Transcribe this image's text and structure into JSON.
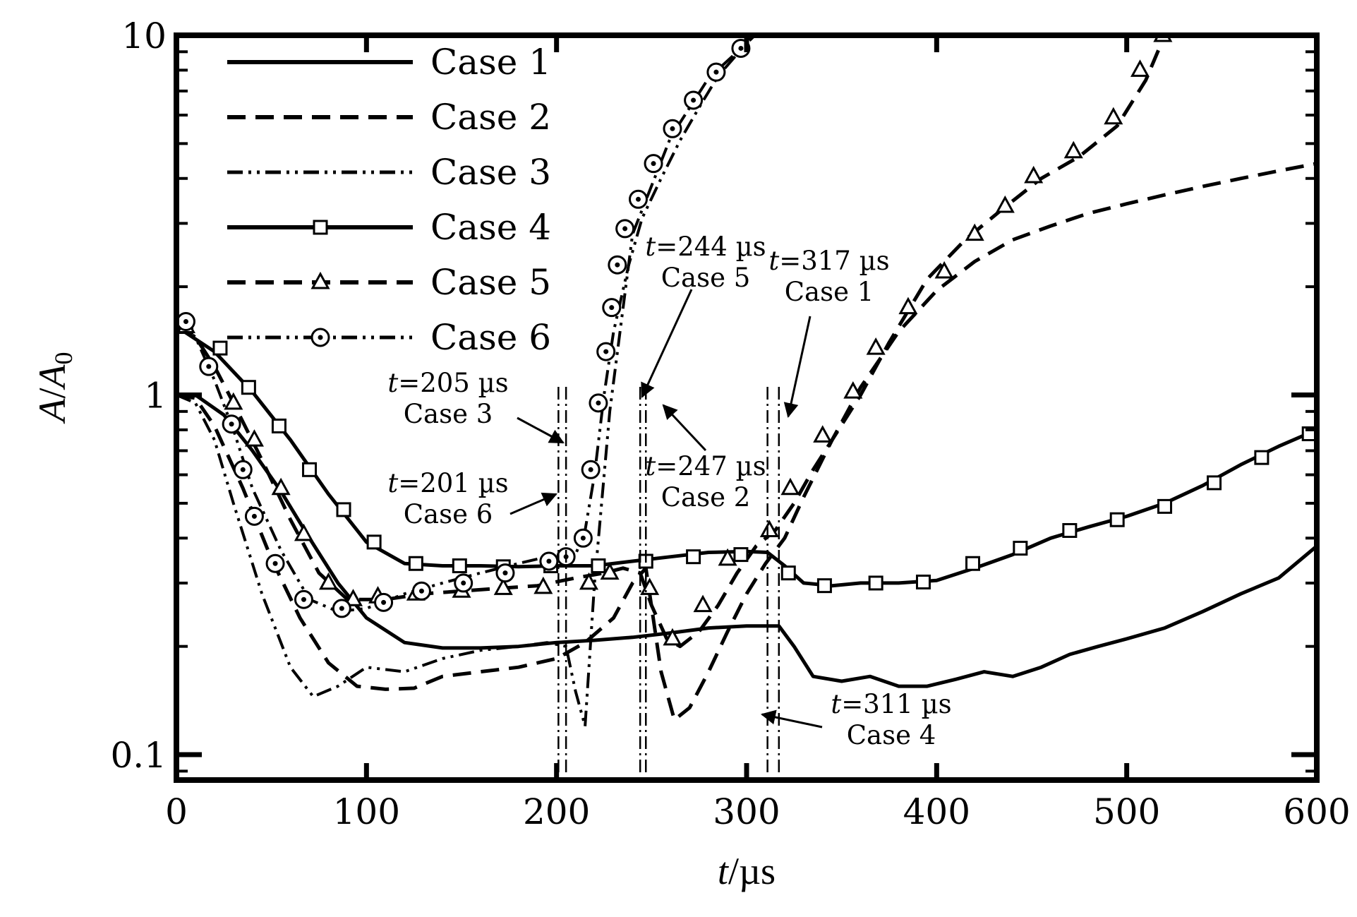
{
  "chart_data": {
    "type": "line",
    "xlabel": {
      "var": "t",
      "unit": "/µs"
    },
    "ylabel": {
      "var": "A",
      "divider": "/",
      "den": "A",
      "sub": "0"
    },
    "xlim": [
      0,
      600
    ],
    "ylim": [
      0.085,
      10
    ],
    "yscale": "log",
    "x_ticks": [
      0,
      100,
      200,
      300,
      400,
      500,
      600
    ],
    "y_ticks": [
      {
        "value": 0.1,
        "label": "0.1"
      },
      {
        "value": 1,
        "label": "1"
      },
      {
        "value": 10,
        "label": "10"
      }
    ],
    "grid": false,
    "legend_position": "top-left",
    "series": [
      {
        "name": "Case 1",
        "line": "solid",
        "marker": "none",
        "x": [
          0,
          10,
          25,
          40,
          55,
          70,
          85,
          100,
          120,
          140,
          160,
          180,
          200,
          220,
          240,
          260,
          280,
          300,
          317,
          325,
          335,
          350,
          365,
          380,
          395,
          410,
          425,
          440,
          455,
          470,
          485,
          500,
          520,
          540,
          560,
          580,
          600
        ],
        "y": [
          1.0,
          1.0,
          0.88,
          0.7,
          0.54,
          0.4,
          0.3,
          0.24,
          0.205,
          0.198,
          0.198,
          0.2,
          0.205,
          0.208,
          0.212,
          0.218,
          0.225,
          0.228,
          0.228,
          0.2,
          0.165,
          0.16,
          0.165,
          0.155,
          0.155,
          0.162,
          0.17,
          0.165,
          0.175,
          0.19,
          0.2,
          0.21,
          0.225,
          0.25,
          0.28,
          0.31,
          0.38
        ]
      },
      {
        "name": "Case 2",
        "line": "dashed",
        "marker": "none",
        "x": [
          0,
          10,
          20,
          35,
          50,
          65,
          80,
          95,
          110,
          125,
          140,
          160,
          180,
          200,
          215,
          230,
          240,
          247,
          255,
          262,
          270,
          280,
          290,
          300,
          310,
          320,
          330,
          345,
          360,
          380,
          400,
          420,
          440,
          460,
          480,
          500,
          520,
          540,
          560,
          580,
          600
        ],
        "y": [
          1.0,
          0.98,
          0.82,
          0.55,
          0.35,
          0.24,
          0.18,
          0.155,
          0.152,
          0.153,
          0.165,
          0.17,
          0.175,
          0.185,
          0.205,
          0.24,
          0.3,
          0.33,
          0.17,
          0.125,
          0.135,
          0.17,
          0.22,
          0.28,
          0.34,
          0.4,
          0.52,
          0.75,
          1.05,
          1.5,
          1.95,
          2.35,
          2.7,
          2.95,
          3.2,
          3.4,
          3.6,
          3.8,
          4.0,
          4.2,
          4.4
        ]
      },
      {
        "name": "Case 3",
        "line": "dash-dot-dot",
        "marker": "none",
        "x": [
          0,
          10,
          20,
          30,
          45,
          60,
          72,
          85,
          100,
          120,
          140,
          160,
          180,
          195,
          205,
          210,
          215,
          220,
          228,
          240,
          260,
          280,
          300,
          320
        ],
        "y": [
          1.0,
          0.95,
          0.75,
          0.5,
          0.28,
          0.175,
          0.145,
          0.155,
          0.175,
          0.17,
          0.185,
          0.195,
          0.2,
          0.205,
          0.2,
          0.15,
          0.12,
          0.3,
          0.9,
          2.8,
          5.2,
          7.6,
          9.5,
          12.0
        ]
      },
      {
        "name": "Case 4",
        "line": "solid",
        "marker": "square",
        "x": [
          0,
          20,
          40,
          60,
          80,
          100,
          120,
          140,
          160,
          180,
          200,
          220,
          240,
          260,
          280,
          300,
          311,
          320,
          330,
          345,
          360,
          380,
          400,
          420,
          440,
          460,
          480,
          500,
          520,
          540,
          560,
          580,
          600
        ],
        "y": [
          1.55,
          1.32,
          1.02,
          0.75,
          0.53,
          0.39,
          0.34,
          0.335,
          0.335,
          0.333,
          0.335,
          0.335,
          0.345,
          0.355,
          0.365,
          0.367,
          0.365,
          0.335,
          0.3,
          0.295,
          0.3,
          0.3,
          0.305,
          0.33,
          0.36,
          0.4,
          0.43,
          0.46,
          0.5,
          0.56,
          0.64,
          0.72,
          0.8
        ],
        "markers_x": [
          5,
          23,
          38,
          54,
          70,
          88,
          104,
          126,
          149,
          172,
          197,
          222,
          247,
          272,
          297,
          322,
          341,
          368,
          393,
          419,
          444,
          470,
          495,
          520,
          546,
          571,
          596
        ],
        "markers_y": [
          1.55,
          1.35,
          1.05,
          0.82,
          0.62,
          0.48,
          0.39,
          0.34,
          0.335,
          0.333,
          0.335,
          0.335,
          0.345,
          0.355,
          0.36,
          0.32,
          0.295,
          0.3,
          0.302,
          0.34,
          0.375,
          0.42,
          0.45,
          0.49,
          0.57,
          0.67,
          0.78
        ]
      },
      {
        "name": "Case 5",
        "line": "dashed",
        "marker": "triangle",
        "x": [
          0,
          10,
          20,
          30,
          45,
          60,
          75,
          90,
          110,
          130,
          150,
          170,
          190,
          210,
          225,
          235,
          244,
          250,
          258,
          265,
          275,
          285,
          295,
          305,
          315,
          325,
          335,
          345,
          360,
          375,
          395,
          415,
          435,
          455,
          475,
          495,
          510,
          520
        ],
        "y": [
          1.55,
          1.45,
          1.2,
          0.95,
          0.66,
          0.45,
          0.32,
          0.27,
          0.27,
          0.28,
          0.285,
          0.29,
          0.295,
          0.31,
          0.32,
          0.33,
          0.32,
          0.26,
          0.21,
          0.2,
          0.22,
          0.26,
          0.32,
          0.38,
          0.42,
          0.5,
          0.62,
          0.75,
          1.0,
          1.4,
          2.1,
          2.7,
          3.3,
          4.0,
          4.6,
          5.6,
          7.5,
          10.0
        ],
        "markers_x": [
          5,
          30,
          41,
          55,
          67,
          80,
          93,
          106,
          126,
          150,
          172,
          193,
          217,
          228,
          249,
          261,
          277,
          290,
          312,
          323,
          340,
          356,
          368,
          385,
          404,
          420,
          436,
          451,
          472,
          493,
          507,
          519
        ],
        "markers_y": [
          1.55,
          0.95,
          0.75,
          0.55,
          0.41,
          0.3,
          0.27,
          0.275,
          0.28,
          0.285,
          0.29,
          0.292,
          0.3,
          0.32,
          0.29,
          0.21,
          0.26,
          0.35,
          0.42,
          0.55,
          0.77,
          1.02,
          1.35,
          1.75,
          2.2,
          2.8,
          3.35,
          4.05,
          4.75,
          5.9,
          8.0,
          10.0
        ]
      },
      {
        "name": "Case 6",
        "line": "dash-dot-dot",
        "marker": "circle",
        "x": [
          0,
          10,
          20,
          30,
          40,
          55,
          70,
          85,
          100,
          120,
          140,
          160,
          180,
          195,
          201,
          206,
          210,
          215,
          220,
          225,
          230,
          238,
          245,
          255,
          265,
          275,
          285,
          300,
          315
        ],
        "y": [
          1.6,
          1.45,
          1.1,
          0.8,
          0.55,
          0.37,
          0.27,
          0.25,
          0.255,
          0.28,
          0.3,
          0.32,
          0.34,
          0.355,
          0.36,
          0.35,
          0.36,
          0.42,
          0.6,
          1.0,
          1.5,
          2.3,
          3.1,
          4.0,
          5.1,
          6.3,
          7.7,
          9.5,
          12.0
        ],
        "markers_x": [
          5,
          17,
          29,
          35,
          41,
          52,
          67,
          87,
          109,
          129,
          151,
          173,
          196,
          205,
          214,
          218,
          222,
          226,
          229,
          232,
          236,
          243,
          251,
          261,
          272,
          284,
          297
        ],
        "markers_y": [
          1.6,
          1.2,
          0.83,
          0.62,
          0.46,
          0.34,
          0.27,
          0.255,
          0.265,
          0.285,
          0.3,
          0.32,
          0.345,
          0.355,
          0.4,
          0.62,
          0.95,
          1.32,
          1.75,
          2.3,
          2.9,
          3.5,
          4.4,
          5.5,
          6.6,
          7.9,
          9.2
        ]
      }
    ],
    "annotations": [
      {
        "var": "t",
        "value": "=205 µs",
        "case": "Case 3",
        "line_x": 205
      },
      {
        "var": "t",
        "value": "=201 µs",
        "case": "Case 6",
        "line_x": 201
      },
      {
        "var": "t",
        "value": "=244 µs",
        "case": "Case 5",
        "line_x": 244
      },
      {
        "var": "t",
        "value": "=247 µs",
        "case": "Case 2",
        "line_x": 247
      },
      {
        "var": "t",
        "value": "=317 µs",
        "case": "Case 1",
        "line_x": 317
      },
      {
        "var": "t",
        "value": "=311 µs",
        "case": "Case 4",
        "line_x": 311
      }
    ]
  }
}
